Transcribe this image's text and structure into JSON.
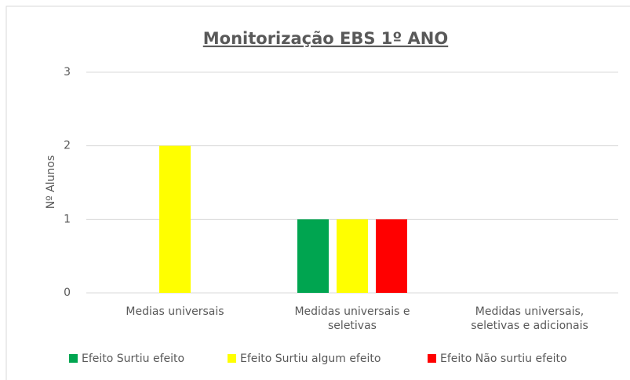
{
  "chart_data": {
    "type": "bar",
    "title": "Monitorização EBS 1º ANO",
    "ylabel": "Nº Alunos",
    "categories": [
      "Medias universais",
      "Medidas universais e seletivas",
      "Medidas universais, seletivas e adicionais"
    ],
    "series": [
      {
        "name": "Efeito Surtiu efeito",
        "color": "#00a550",
        "values": [
          0,
          1,
          0
        ]
      },
      {
        "name": "Efeito Surtiu algum efeito",
        "color": "#ffff00",
        "values": [
          2,
          1,
          0
        ]
      },
      {
        "name": "Efeito Não surtiu efeito",
        "color": "#ff0000",
        "values": [
          0,
          1,
          0
        ]
      }
    ],
    "ylim": [
      0,
      3
    ],
    "yticks": [
      0,
      1,
      2,
      3
    ],
    "grid": true,
    "legend": "bottom"
  }
}
